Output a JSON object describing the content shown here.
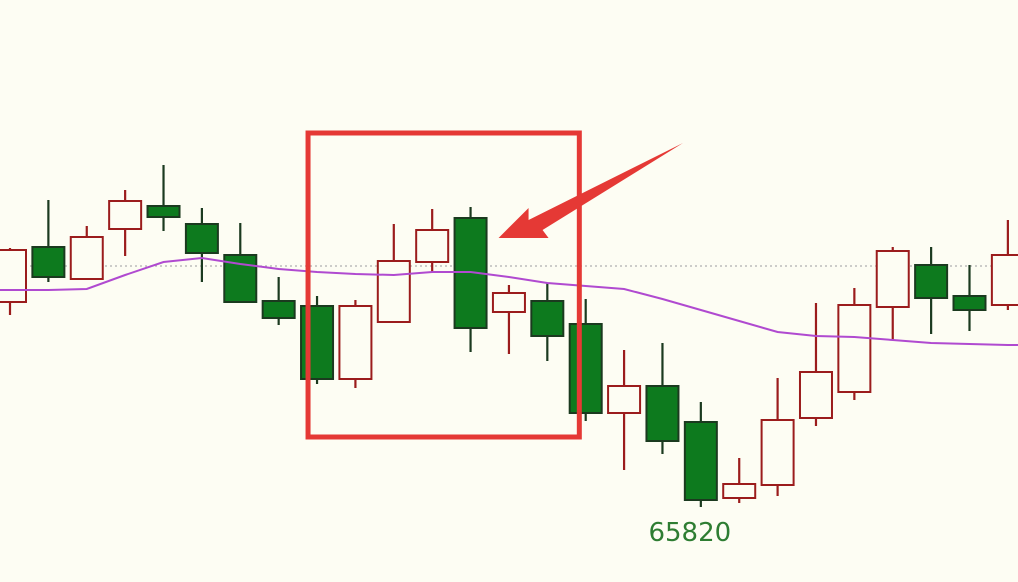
{
  "chart_data": {
    "type": "candlestick",
    "title": "",
    "xlabel": "",
    "ylabel": "",
    "colors": {
      "up": "#9b1c1c",
      "down": "#0d7a1e",
      "ma": "#b04ad0",
      "highlight": "#e53935",
      "label": "#2e7d32",
      "reference_line": "#b0b0b0"
    },
    "candles": [
      {
        "o": 66230,
        "h": 66338,
        "l": 66204,
        "c": 66334
      },
      {
        "o": 66340,
        "h": 66434,
        "l": 66270,
        "c": 66280
      },
      {
        "o": 66276,
        "h": 66382,
        "l": 66274,
        "c": 66360
      },
      {
        "o": 66376,
        "h": 66454,
        "l": 66322,
        "c": 66432
      },
      {
        "o": 66422,
        "h": 66504,
        "l": 66372,
        "c": 66400
      },
      {
        "o": 66386,
        "h": 66418,
        "l": 66270,
        "c": 66328
      },
      {
        "o": 66324,
        "h": 66388,
        "l": 66230,
        "c": 66230
      },
      {
        "o": 66232,
        "h": 66280,
        "l": 66184,
        "c": 66198
      },
      {
        "o": 66222,
        "h": 66242,
        "l": 66066,
        "c": 66076
      },
      {
        "o": 66076,
        "h": 66234,
        "l": 66058,
        "c": 66222
      },
      {
        "o": 66190,
        "h": 66386,
        "l": 66190,
        "c": 66312
      },
      {
        "o": 66310,
        "h": 66416,
        "l": 66290,
        "c": 66374
      },
      {
        "o": 66398,
        "h": 66420,
        "l": 66130,
        "c": 66178
      },
      {
        "o": 66210,
        "h": 66264,
        "l": 66126,
        "c": 66248
      },
      {
        "o": 66232,
        "h": 66268,
        "l": 66112,
        "c": 66162
      },
      {
        "o": 66186,
        "h": 66236,
        "l": 65992,
        "c": 66008
      },
      {
        "o": 66008,
        "h": 66134,
        "l": 65894,
        "c": 66062
      },
      {
        "o": 66062,
        "h": 66148,
        "l": 65926,
        "c": 65952
      },
      {
        "o": 65990,
        "h": 66030,
        "l": 65820,
        "c": 65834
      },
      {
        "o": 65838,
        "h": 65918,
        "l": 65828,
        "c": 65866
      },
      {
        "o": 65864,
        "h": 66078,
        "l": 65842,
        "c": 65994
      },
      {
        "o": 65998,
        "h": 66228,
        "l": 65982,
        "c": 66090
      },
      {
        "o": 66050,
        "h": 66258,
        "l": 66034,
        "c": 66224
      },
      {
        "o": 66220,
        "h": 66340,
        "l": 66154,
        "c": 66332
      },
      {
        "o": 66304,
        "h": 66340,
        "l": 66166,
        "c": 66238
      },
      {
        "o": 66242,
        "h": 66304,
        "l": 66172,
        "c": 66214
      },
      {
        "o": 66224,
        "h": 66394,
        "l": 66214,
        "c": 66324
      }
    ],
    "moving_average": [
      66254,
      66254,
      66256,
      66284,
      66310,
      66318,
      66306,
      66296,
      66290,
      66286,
      66284,
      66290,
      66290,
      66280,
      66268,
      66262,
      66256,
      66236,
      66214,
      66192,
      66170,
      66162,
      66160,
      66154,
      66148,
      66146,
      66144
    ],
    "reference_level": 66302,
    "annotations": {
      "low_label": "65820",
      "low_label_candle": 18,
      "highlight_box_candles": [
        8,
        14
      ],
      "arrow_target_candle": 12
    },
    "grid": false
  }
}
